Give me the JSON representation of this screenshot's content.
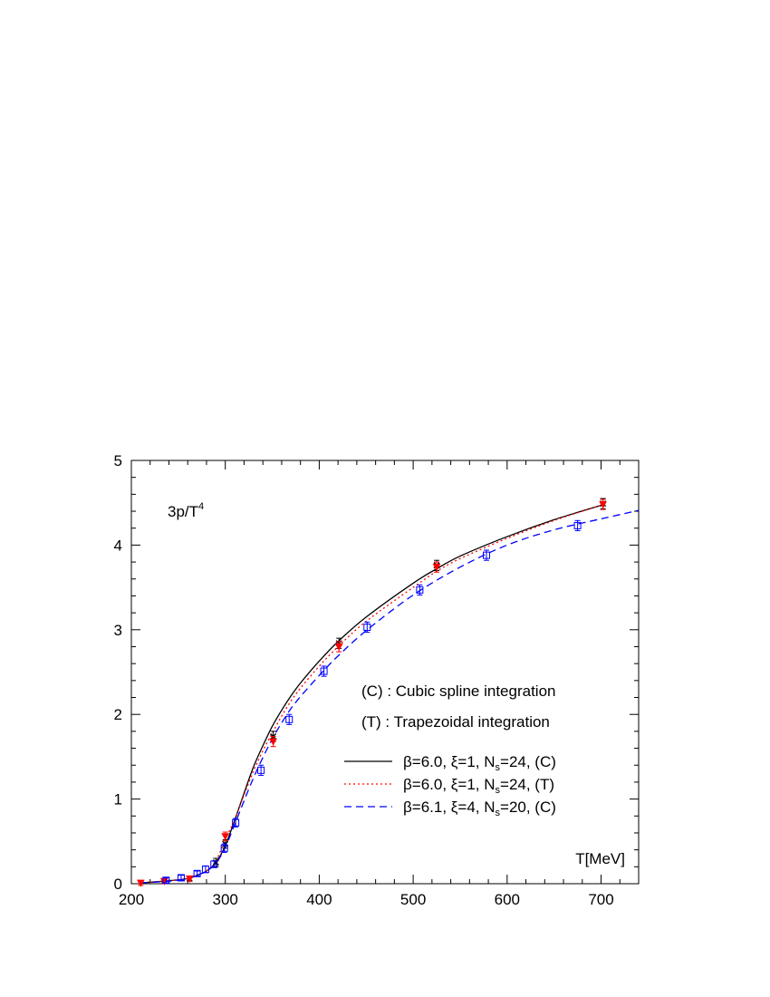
{
  "chart_data": {
    "type": "line",
    "ylabel_main": "3p/T",
    "ylabel_sup": "4",
    "xlabel": "T[MeV]",
    "xlim": [
      200,
      740
    ],
    "ylim": [
      0,
      5
    ],
    "xticks": [
      200,
      300,
      400,
      500,
      600,
      700
    ],
    "yticks": [
      0,
      1,
      2,
      3,
      4,
      5
    ],
    "notes": [
      "(C) : Cubic spline integration",
      "(T) : Trapezoidal integration"
    ],
    "grid": false,
    "legend_position": "lower-right",
    "series": [
      {
        "label_main": "β=6.0, ξ=1, N",
        "label_sub": "s",
        "label_tail": "=24, (C)",
        "color": "#000000",
        "dash": "",
        "curve_x": [
          210,
          235,
          260,
          270,
          280,
          290,
          300,
          310,
          320,
          330,
          340,
          350,
          360,
          370,
          380,
          400,
          420,
          450,
          500,
          525,
          550,
          600,
          650,
          700
        ],
        "curve_y": [
          0.01,
          0.03,
          0.06,
          0.1,
          0.15,
          0.25,
          0.45,
          0.75,
          1.07,
          1.38,
          1.63,
          1.86,
          2.05,
          2.22,
          2.37,
          2.63,
          2.86,
          3.15,
          3.55,
          3.72,
          3.87,
          4.1,
          4.3,
          4.47
        ],
        "points_x": [
          235,
          262,
          290,
          300,
          351,
          421,
          525,
          702
        ],
        "points_y": [
          0.03,
          0.06,
          0.25,
          0.47,
          1.74,
          2.84,
          3.76,
          4.49
        ],
        "errors": [
          0.03,
          0.03,
          0.05,
          0.05,
          0.06,
          0.06,
          0.06,
          0.06
        ],
        "marker": "x"
      },
      {
        "label_main": "β=6.0, ξ=1, N",
        "label_sub": "s",
        "label_tail": "=24, (T)",
        "color": "#ff0000",
        "dash": "2 3",
        "curve_x": [
          210,
          235,
          260,
          270,
          280,
          290,
          300,
          310,
          320,
          330,
          340,
          350,
          360,
          370,
          380,
          400,
          420,
          450,
          500,
          525,
          550,
          600,
          650,
          700
        ],
        "curve_y": [
          0.01,
          0.03,
          0.06,
          0.1,
          0.15,
          0.27,
          0.52,
          0.76,
          1.05,
          1.33,
          1.57,
          1.78,
          1.98,
          2.16,
          2.31,
          2.57,
          2.8,
          3.1,
          3.5,
          3.69,
          3.84,
          4.08,
          4.29,
          4.47
        ],
        "points_x": [
          210,
          235,
          262,
          300,
          351,
          421,
          525,
          702
        ],
        "points_y": [
          0.01,
          0.03,
          0.06,
          0.56,
          1.68,
          2.8,
          3.74,
          4.48
        ],
        "errors": [
          0.03,
          0.03,
          0.03,
          0.05,
          0.06,
          0.06,
          0.06,
          0.06
        ],
        "marker": "triangle"
      },
      {
        "label_main": "β=6.1, ξ=4, N",
        "label_sub": "s",
        "label_tail": "=20, (C)",
        "color": "#0000ff",
        "dash": "8 5",
        "curve_x": [
          210,
          240,
          260,
          270,
          280,
          290,
          300,
          310,
          320,
          330,
          340,
          350,
          360,
          370,
          380,
          400,
          420,
          450,
          500,
          550,
          600,
          650,
          700,
          740
        ],
        "curve_y": [
          0.01,
          0.03,
          0.06,
          0.1,
          0.15,
          0.24,
          0.43,
          0.7,
          0.98,
          1.25,
          1.49,
          1.71,
          1.9,
          2.07,
          2.21,
          2.46,
          2.69,
          2.99,
          3.41,
          3.74,
          4.0,
          4.18,
          4.31,
          4.41
        ],
        "points_x": [
          237,
          253,
          270,
          279,
          288,
          299,
          311,
          338,
          368,
          405,
          451,
          507,
          578,
          675
        ],
        "points_y": [
          0.04,
          0.07,
          0.12,
          0.17,
          0.23,
          0.42,
          0.72,
          1.34,
          1.94,
          2.51,
          3.03,
          3.47,
          3.88,
          4.23
        ],
        "errors": [
          0.03,
          0.03,
          0.03,
          0.04,
          0.04,
          0.05,
          0.05,
          0.06,
          0.06,
          0.06,
          0.06,
          0.06,
          0.06,
          0.06
        ],
        "marker": "square"
      }
    ]
  }
}
